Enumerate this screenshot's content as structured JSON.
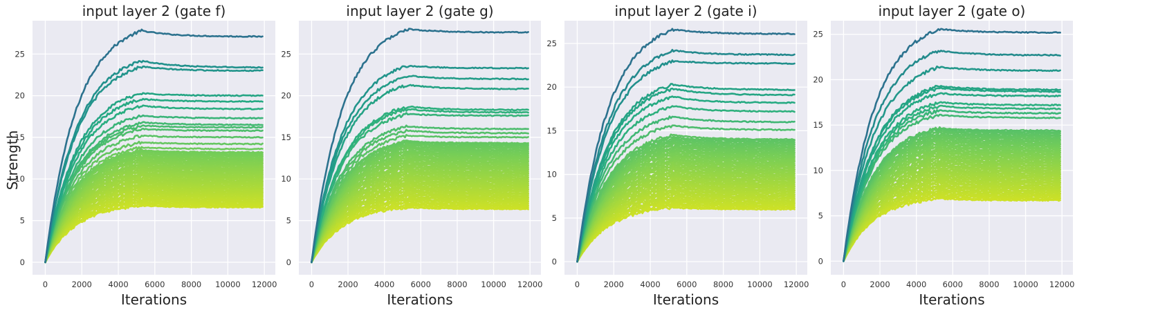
{
  "figure": {
    "ylabel": "Strength"
  },
  "chart_data": [
    {
      "type": "line",
      "title": "input layer 2 (gate f)",
      "xlabel": "Iterations",
      "ylabel": "Strength",
      "xlim": [
        -700,
        12600
      ],
      "ylim": [
        -1.5,
        29
      ],
      "xticks": [
        0,
        2000,
        4000,
        6000,
        8000,
        10000,
        12000
      ],
      "yticks": [
        0,
        5,
        10,
        15,
        20,
        25
      ],
      "grid": true,
      "peak_iteration": 5300,
      "final_iteration": 11900,
      "colormap": "viridis-high-to-low",
      "series_summary": {
        "count": 60,
        "peak_values_top": [
          27.8,
          24.2,
          23.5,
          20.3,
          19.6,
          18.8,
          17.6,
          16.8,
          16.4,
          16.0,
          15.2,
          14.4,
          13.8,
          13.4
        ],
        "final_values_top": [
          27.1,
          23.4,
          23.0,
          20.0,
          19.3,
          18.4,
          17.3,
          16.5,
          16.2,
          15.8,
          15.0,
          14.2,
          13.6,
          13.2
        ],
        "final_min": 6.6,
        "final_max": 27.1
      }
    },
    {
      "type": "line",
      "title": "input layer 2 (gate g)",
      "xlabel": "Iterations",
      "ylabel": "",
      "xlim": [
        -700,
        12600
      ],
      "ylim": [
        -1.5,
        29
      ],
      "xticks": [
        0,
        2000,
        4000,
        6000,
        8000,
        10000,
        12000
      ],
      "yticks": [
        0,
        5,
        10,
        15,
        20,
        25
      ],
      "grid": true,
      "peak_iteration": 5300,
      "final_iteration": 11900,
      "colormap": "viridis-high-to-low",
      "series_summary": {
        "count": 60,
        "peak_values_top": [
          28.0,
          23.6,
          22.4,
          21.3,
          18.7,
          18.4,
          17.8,
          16.3,
          15.8,
          15.2,
          14.5
        ],
        "final_values_top": [
          27.6,
          23.3,
          22.0,
          20.8,
          18.3,
          18.0,
          17.6,
          16.0,
          15.5,
          15.0,
          14.3
        ],
        "final_min": 6.4,
        "final_max": 27.6
      }
    },
    {
      "type": "line",
      "title": "input layer 2 (gate i)",
      "xlabel": "Iterations",
      "ylabel": "",
      "xlim": [
        -700,
        12600
      ],
      "ylim": [
        -1.5,
        27.6
      ],
      "xticks": [
        0,
        2000,
        4000,
        6000,
        8000,
        10000,
        12000
      ],
      "yticks": [
        0,
        5,
        10,
        15,
        20,
        25
      ],
      "grid": true,
      "peak_iteration": 5300,
      "final_iteration": 11900,
      "colormap": "viridis-high-to-low",
      "series_summary": {
        "count": 60,
        "peak_values_top": [
          26.6,
          24.2,
          23.0,
          20.3,
          19.8,
          18.9,
          17.8,
          16.6,
          15.6,
          14.5
        ],
        "final_values_top": [
          26.1,
          23.7,
          22.7,
          19.7,
          19.1,
          18.2,
          17.2,
          16.0,
          15.1,
          14.0
        ],
        "final_min": 6.0,
        "final_max": 26.1
      }
    },
    {
      "type": "line",
      "title": "input layer 2 (gate o)",
      "xlabel": "Iterations",
      "ylabel": "",
      "xlim": [
        -700,
        12600
      ],
      "ylim": [
        -1.5,
        26.5
      ],
      "xticks": [
        0,
        2000,
        4000,
        6000,
        8000,
        10000,
        12000
      ],
      "yticks": [
        0,
        5,
        10,
        15,
        20,
        25
      ],
      "grid": true,
      "peak_iteration": 5300,
      "final_iteration": 11900,
      "colormap": "viridis-high-to-low",
      "series_summary": {
        "count": 60,
        "peak_values_top": [
          25.6,
          23.2,
          21.4,
          19.3,
          19.1,
          18.5,
          17.5,
          17.1,
          16.6,
          16.1,
          14.6
        ],
        "final_values_top": [
          25.2,
          22.7,
          21.0,
          18.9,
          18.7,
          18.2,
          17.2,
          16.8,
          16.3,
          15.8,
          14.4
        ],
        "final_min": 6.7,
        "final_max": 25.2
      }
    }
  ]
}
